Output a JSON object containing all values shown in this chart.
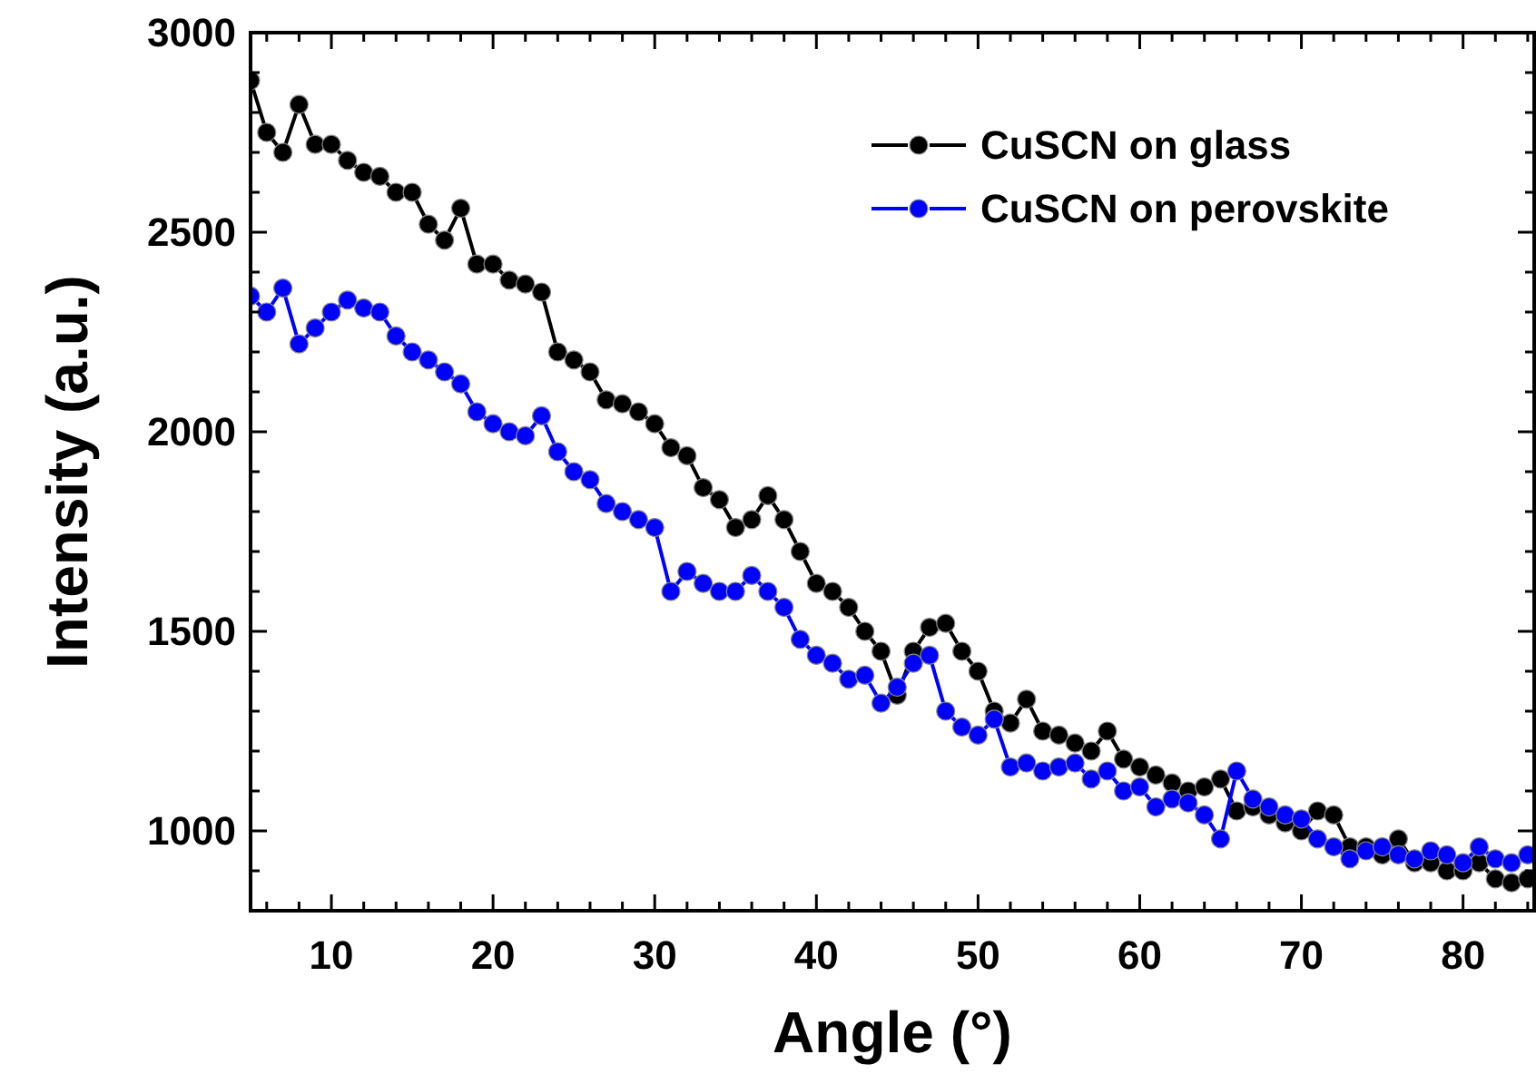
{
  "chart_data": {
    "type": "line",
    "xlabel": "Angle (°)",
    "ylabel": "Intensity (a.u.)",
    "xlim": [
      5,
      84.4
    ],
    "ylim": [
      800,
      3000
    ],
    "xticks": [
      {
        "value": 6,
        "label": null
      },
      {
        "value": 8,
        "label": null
      },
      10,
      {
        "value": 12,
        "label": null
      },
      {
        "value": 14,
        "label": null
      },
      {
        "value": 16,
        "label": null
      },
      {
        "value": 18,
        "label": null
      },
      20,
      {
        "value": 22,
        "label": null
      },
      {
        "value": 24,
        "label": null
      },
      {
        "value": 26,
        "label": null
      },
      {
        "value": 28,
        "label": null
      },
      30,
      {
        "value": 32,
        "label": null
      },
      {
        "value": 34,
        "label": null
      },
      {
        "value": 36,
        "label": null
      },
      {
        "value": 38,
        "label": null
      },
      40,
      {
        "value": 42,
        "label": null
      },
      {
        "value": 44,
        "label": null
      },
      {
        "value": 46,
        "label": null
      },
      {
        "value": 48,
        "label": null
      },
      50,
      {
        "value": 52,
        "label": null
      },
      {
        "value": 54,
        "label": null
      },
      {
        "value": 56,
        "label": null
      },
      {
        "value": 58,
        "label": null
      },
      60,
      {
        "value": 62,
        "label": null
      },
      {
        "value": 64,
        "label": null
      },
      {
        "value": 66,
        "label": null
      },
      {
        "value": 68,
        "label": null
      },
      70,
      {
        "value": 72,
        "label": null
      },
      {
        "value": 74,
        "label": null
      },
      {
        "value": 76,
        "label": null
      },
      {
        "value": 78,
        "label": null
      },
      80,
      {
        "value": 82,
        "label": null
      },
      {
        "value": 84,
        "label": null
      }
    ],
    "yticks": [
      {
        "value": 900,
        "label": null
      },
      1000,
      {
        "value": 1100,
        "label": null
      },
      {
        "value": 1200,
        "label": null
      },
      {
        "value": 1300,
        "label": null
      },
      {
        "value": 1400,
        "label": null
      },
      1500,
      {
        "value": 1600,
        "label": null
      },
      {
        "value": 1700,
        "label": null
      },
      {
        "value": 1800,
        "label": null
      },
      {
        "value": 1900,
        "label": null
      },
      2000,
      {
        "value": 2100,
        "label": null
      },
      {
        "value": 2200,
        "label": null
      },
      {
        "value": 2300,
        "label": null
      },
      {
        "value": 2400,
        "label": null
      },
      2500,
      {
        "value": 2600,
        "label": null
      },
      {
        "value": 2700,
        "label": null
      },
      {
        "value": 2800,
        "label": null
      },
      {
        "value": 2900,
        "label": null
      },
      3000
    ],
    "x": [
      5,
      6,
      7,
      8,
      9,
      10,
      11,
      12,
      13,
      14,
      15,
      16,
      17,
      18,
      19,
      20,
      21,
      22,
      23,
      24,
      25,
      26,
      27,
      28,
      29,
      30,
      31,
      32,
      33,
      34,
      35,
      36,
      37,
      38,
      39,
      40,
      41,
      42,
      43,
      44,
      45,
      46,
      47,
      48,
      49,
      50,
      51,
      52,
      53,
      54,
      55,
      56,
      57,
      58,
      59,
      60,
      61,
      62,
      63,
      64,
      65,
      66,
      67,
      68,
      69,
      70,
      71,
      72,
      73,
      74,
      75,
      76,
      77,
      78,
      79,
      80,
      81,
      82,
      83,
      84
    ],
    "marker": "circle",
    "line_style": "solid",
    "legend": "top right",
    "grid": false,
    "series": [
      {
        "name": "CuSCN on glass",
        "color": "#000000",
        "values": [
          2880,
          2750,
          2700,
          2820,
          2720,
          2720,
          2680,
          2650,
          2640,
          2600,
          2600,
          2520,
          2480,
          2560,
          2420,
          2420,
          2380,
          2370,
          2350,
          2200,
          2180,
          2150,
          2080,
          2070,
          2050,
          2020,
          1960,
          1940,
          1860,
          1830,
          1760,
          1780,
          1840,
          1780,
          1700,
          1620,
          1600,
          1560,
          1500,
          1450,
          1340,
          1450,
          1510,
          1520,
          1450,
          1400,
          1300,
          1270,
          1330,
          1250,
          1240,
          1220,
          1200,
          1250,
          1180,
          1160,
          1140,
          1120,
          1100,
          1110,
          1130,
          1050,
          1060,
          1040,
          1020,
          1000,
          1050,
          1040,
          960,
          960,
          940,
          980,
          920,
          920,
          900,
          900,
          920,
          880,
          870,
          880
        ]
      },
      {
        "name": "CuSCN on perovskite",
        "color": "#0000ff",
        "values": [
          2340,
          2300,
          2360,
          2220,
          2260,
          2300,
          2330,
          2310,
          2300,
          2240,
          2200,
          2180,
          2150,
          2120,
          2050,
          2020,
          2000,
          1990,
          2040,
          1950,
          1900,
          1880,
          1820,
          1800,
          1780,
          1760,
          1600,
          1650,
          1620,
          1600,
          1600,
          1640,
          1600,
          1560,
          1480,
          1440,
          1420,
          1380,
          1390,
          1320,
          1360,
          1420,
          1440,
          1300,
          1260,
          1240,
          1280,
          1160,
          1170,
          1150,
          1160,
          1170,
          1130,
          1150,
          1100,
          1110,
          1060,
          1080,
          1070,
          1040,
          980,
          1150,
          1080,
          1060,
          1040,
          1030,
          980,
          960,
          930,
          950,
          960,
          940,
          930,
          950,
          940,
          920,
          960,
          930,
          920,
          940
        ]
      }
    ]
  }
}
